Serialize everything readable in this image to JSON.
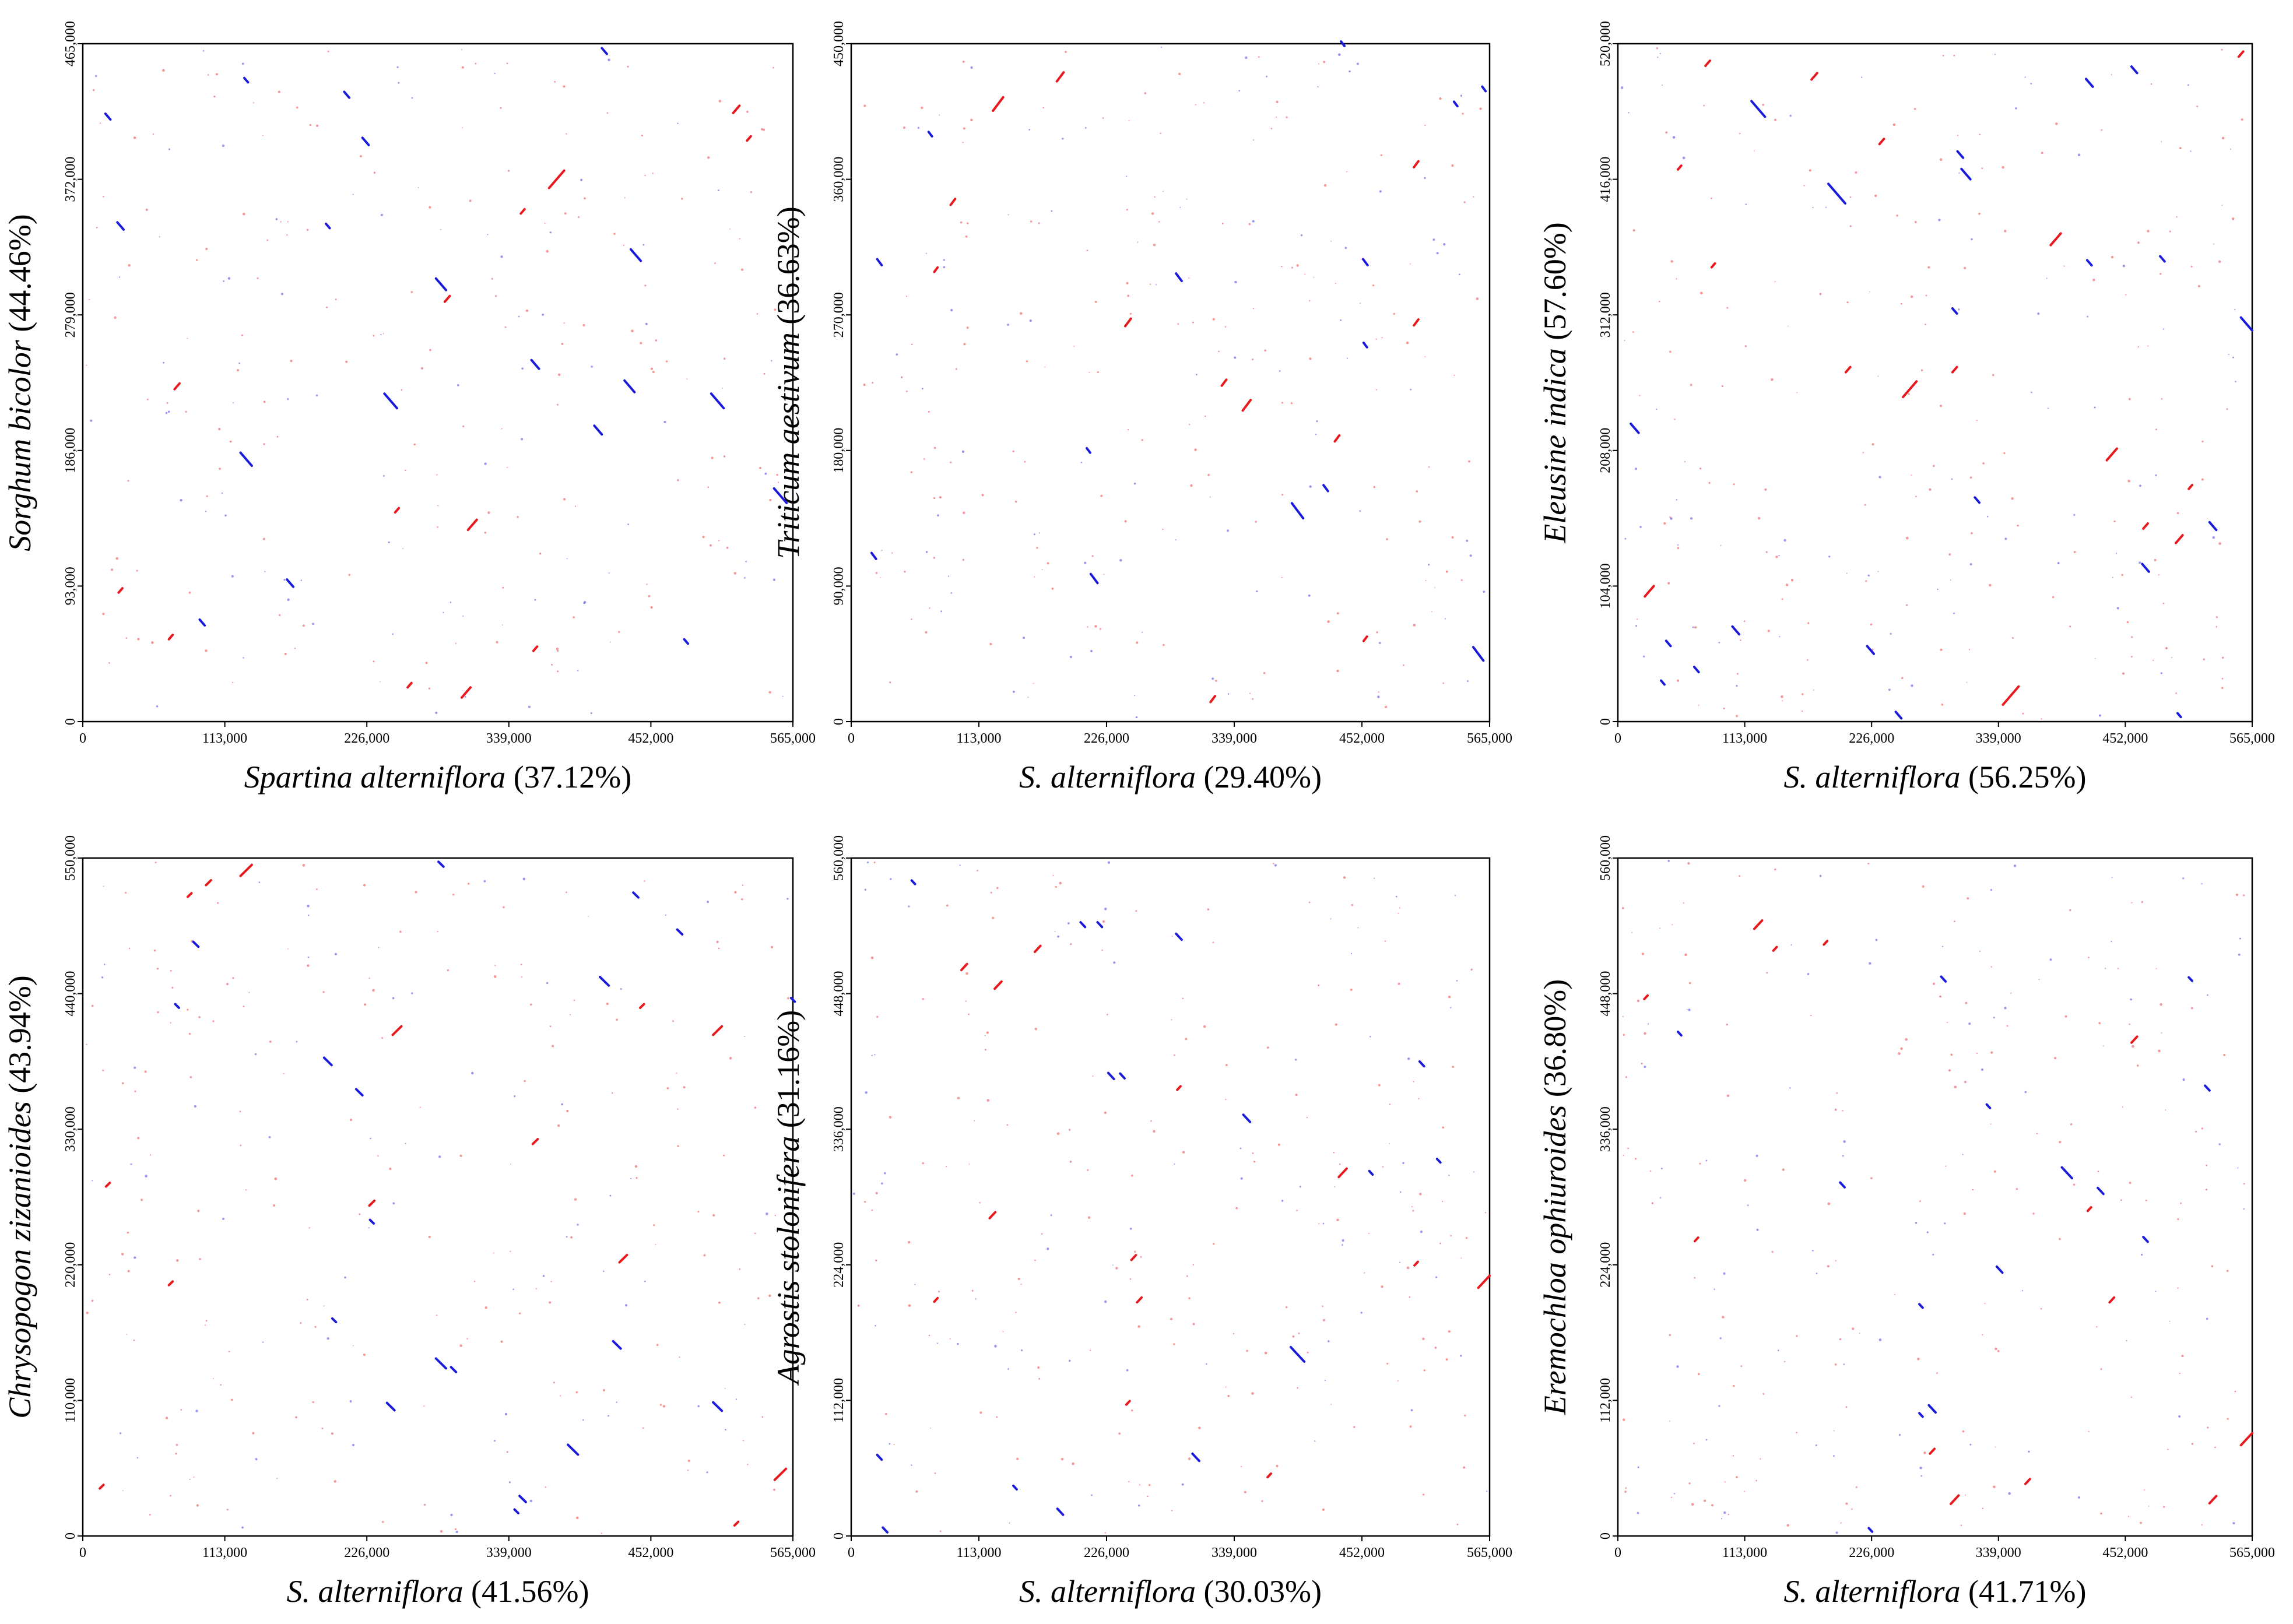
{
  "colors": {
    "forward": "#e8181c",
    "reverse": "#1a1adc",
    "frame": "#000000"
  },
  "chart_data": [
    {
      "type": "scatter",
      "panel": "top-left",
      "xlabel": {
        "species": "Spartina alterniflora",
        "pct": " (37.12%)"
      },
      "ylabel": {
        "species": "Sorghum bicolor",
        "pct": "  (44.46%)"
      },
      "xlim": [
        0,
        565000
      ],
      "ylim": [
        0,
        465000
      ],
      "xticks": [
        "0",
        "113,000",
        "226,000",
        "339,000",
        "452,000",
        "565,000"
      ],
      "yticks": [
        "0",
        "93,000",
        "186,000",
        "279,000",
        "372,000",
        "465,000"
      ],
      "forward_segments": [
        [
          377000,
          372000,
          12000
        ],
        [
          310000,
          135000,
          7000
        ],
        [
          305000,
          20000,
          7000
        ],
        [
          520000,
          420000,
          5000
        ],
        [
          75000,
          230000,
          4000
        ],
        [
          250000,
          145000,
          3000
        ],
        [
          290000,
          290000,
          4000
        ],
        [
          70000,
          58000,
          3000
        ],
        [
          350000,
          350000,
          3000
        ],
        [
          360000,
          50000,
          3000
        ],
        [
          530000,
          400000,
          3000
        ],
        [
          30000,
          90000,
          3000
        ],
        [
          260000,
          25000,
          3000
        ]
      ],
      "reverse_segments": [
        [
          245000,
          220000,
          10000
        ],
        [
          505000,
          220000,
          10000
        ],
        [
          555000,
          155000,
          10000
        ],
        [
          130000,
          180000,
          9000
        ],
        [
          435000,
          230000,
          8000
        ],
        [
          285000,
          300000,
          8000
        ],
        [
          440000,
          320000,
          8000
        ],
        [
          410000,
          200000,
          6000
        ],
        [
          360000,
          245000,
          6000
        ],
        [
          30000,
          340000,
          5000
        ],
        [
          225000,
          398000,
          5000
        ],
        [
          210000,
          430000,
          4000
        ],
        [
          130000,
          440000,
          3000
        ],
        [
          165000,
          95000,
          5000
        ],
        [
          95000,
          68000,
          4000
        ],
        [
          415000,
          460000,
          4000
        ],
        [
          20000,
          415000,
          4000
        ],
        [
          195000,
          340000,
          3000
        ],
        [
          480000,
          55000,
          3000
        ]
      ]
    },
    {
      "type": "scatter",
      "panel": "top-middle",
      "xlabel": {
        "species": "S. alterniflora",
        "pct": " (29.40%)"
      },
      "ylabel": {
        "species": "Triticum aestivum",
        "pct": "  (36.63%)"
      },
      "xlim": [
        0,
        565000
      ],
      "ylim": [
        0,
        450000
      ],
      "xticks": [
        "0",
        "113,000",
        "226,000",
        "339,000",
        "452,000",
        "565,000"
      ],
      "yticks": [
        "0",
        "90,000",
        "180,000",
        "270,000",
        "360,000",
        "450,000"
      ],
      "forward_segments": [
        [
          130000,
          410000,
          9000
        ],
        [
          350000,
          210000,
          7000
        ],
        [
          185000,
          428000,
          6000
        ],
        [
          245000,
          265000,
          5000
        ],
        [
          90000,
          345000,
          4000
        ],
        [
          330000,
          225000,
          4000
        ],
        [
          430000,
          188000,
          4000
        ],
        [
          500000,
          370000,
          4000
        ],
        [
          500000,
          265000,
          4000
        ],
        [
          320000,
          15000,
          4000
        ],
        [
          75000,
          300000,
          3000
        ],
        [
          455000,
          55000,
          3000
        ]
      ],
      "reverse_segments": [
        [
          395000,
          140000,
          10000
        ],
        [
          555000,
          45000,
          9000
        ],
        [
          215000,
          95000,
          6000
        ],
        [
          290000,
          295000,
          5000
        ],
        [
          25000,
          305000,
          4000
        ],
        [
          20000,
          110000,
          4000
        ],
        [
          420000,
          155000,
          4000
        ],
        [
          455000,
          305000,
          4000
        ],
        [
          435000,
          450000,
          3000
        ],
        [
          70000,
          390000,
          3000
        ],
        [
          210000,
          180000,
          3000
        ],
        [
          560000,
          420000,
          3000
        ],
        [
          535000,
          410000,
          3000
        ],
        [
          455000,
          250000,
          3000
        ]
      ]
    },
    {
      "type": "scatter",
      "panel": "top-right",
      "xlabel": {
        "species": "S. alterniflora",
        "pct": " (56.25%)"
      },
      "ylabel": {
        "species": "Eleusine indica",
        "pct": " (57.60%)"
      },
      "xlim": [
        0,
        565000
      ],
      "ylim": [
        0,
        520000
      ],
      "xticks": [
        "0",
        "113,000",
        "226,000",
        "339,000",
        "452,000",
        "565,000"
      ],
      "yticks": [
        "0",
        "104,000",
        "208,000",
        "312,000",
        "416,000",
        "520,000"
      ],
      "forward_segments": [
        [
          350000,
          20000,
          14000
        ],
        [
          260000,
          255000,
          12000
        ],
        [
          390000,
          370000,
          9000
        ],
        [
          440000,
          205000,
          9000
        ],
        [
          28000,
          100000,
          8000
        ],
        [
          500000,
          140000,
          6000
        ],
        [
          175000,
          495000,
          5000
        ],
        [
          80000,
          505000,
          4000
        ],
        [
          555000,
          512000,
          4000
        ],
        [
          470000,
          150000,
          4000
        ],
        [
          235000,
          445000,
          4000
        ],
        [
          300000,
          270000,
          4000
        ],
        [
          205000,
          270000,
          4000
        ],
        [
          55000,
          425000,
          3000
        ],
        [
          85000,
          350000,
          3000
        ],
        [
          510000,
          180000,
          3000
        ]
      ],
      "reverse_segments": [
        [
          195000,
          405000,
          15000
        ],
        [
          125000,
          470000,
          12000
        ],
        [
          560000,
          305000,
          10000
        ],
        [
          310000,
          420000,
          8000
        ],
        [
          15000,
          225000,
          7000
        ],
        [
          105000,
          70000,
          6000
        ],
        [
          225000,
          55000,
          6000
        ],
        [
          420000,
          490000,
          6000
        ],
        [
          470000,
          118000,
          6000
        ],
        [
          530000,
          150000,
          6000
        ],
        [
          250000,
          5000,
          5000
        ],
        [
          460000,
          500000,
          5000
        ],
        [
          305000,
          435000,
          5000
        ],
        [
          45000,
          60000,
          4000
        ],
        [
          70000,
          40000,
          4000
        ],
        [
          40000,
          30000,
          3000
        ],
        [
          300000,
          315000,
          4000
        ],
        [
          420000,
          352000,
          4000
        ],
        [
          485000,
          355000,
          4000
        ],
        [
          320000,
          170000,
          4000
        ],
        [
          500000,
          5000,
          3000
        ]
      ]
    },
    {
      "type": "scatter",
      "panel": "bottom-left",
      "xlabel": {
        "species": "S. alterniflora",
        "pct": " (41.56%)"
      },
      "ylabel": {
        "species": "Chrysopogon zizanioides",
        "pct": "  (43.94%)"
      },
      "xlim": [
        0,
        565000
      ],
      "ylim": [
        0,
        550000
      ],
      "xticks": [
        "0",
        "113,000",
        "226,000",
        "339,000",
        "452,000",
        "565,000"
      ],
      "yticks": [
        "0",
        "110,000",
        "220,000",
        "330,000",
        "440,000",
        "550,000"
      ],
      "forward_segments": [
        [
          130000,
          540000,
          9000
        ],
        [
          555000,
          50000,
          9000
        ],
        [
          250000,
          410000,
          7000
        ],
        [
          505000,
          410000,
          7000
        ],
        [
          430000,
          225000,
          6000
        ],
        [
          230000,
          270000,
          4000
        ],
        [
          360000,
          320000,
          4000
        ],
        [
          100000,
          530000,
          4000
        ],
        [
          85000,
          520000,
          3000
        ],
        [
          20000,
          285000,
          3000
        ],
        [
          520000,
          10000,
          3000
        ],
        [
          15000,
          40000,
          3000
        ],
        [
          445000,
          430000,
          3000
        ],
        [
          70000,
          205000,
          3000
        ]
      ],
      "reverse_segments": [
        [
          390000,
          70000,
          8000
        ],
        [
          285000,
          140000,
          8000
        ],
        [
          505000,
          105000,
          7000
        ],
        [
          245000,
          105000,
          6000
        ],
        [
          415000,
          450000,
          7000
        ],
        [
          195000,
          385000,
          6000
        ],
        [
          220000,
          360000,
          5000
        ],
        [
          425000,
          155000,
          6000
        ],
        [
          350000,
          30000,
          5000
        ],
        [
          295000,
          135000,
          4000
        ],
        [
          90000,
          480000,
          4000
        ],
        [
          440000,
          520000,
          4000
        ],
        [
          475000,
          490000,
          4000
        ],
        [
          285000,
          545000,
          4000
        ],
        [
          200000,
          175000,
          3000
        ],
        [
          75000,
          430000,
          3000
        ],
        [
          565000,
          435000,
          3000
        ],
        [
          230000,
          255000,
          3000
        ],
        [
          345000,
          20000,
          3000
        ]
      ]
    },
    {
      "type": "scatter",
      "panel": "bottom-middle",
      "xlabel": {
        "species": "S. alterniflora",
        "pct": " (30.03%)"
      },
      "ylabel": {
        "species": "Agrostis stolonifera",
        "pct": " (31.16%)"
      },
      "xlim": [
        0,
        565000
      ],
      "ylim": [
        0,
        560000
      ],
      "xticks": [
        "0",
        "113,000",
        "226,000",
        "339,000",
        "452,000",
        "565,000"
      ],
      "yticks": [
        "0",
        "112,000",
        "224,000",
        "336,000",
        "448,000",
        "560,000"
      ],
      "forward_segments": [
        [
          560000,
          210000,
          10000
        ],
        [
          130000,
          455000,
          6000
        ],
        [
          435000,
          300000,
          7000
        ],
        [
          165000,
          485000,
          5000
        ],
        [
          100000,
          470000,
          5000
        ],
        [
          125000,
          265000,
          5000
        ],
        [
          255000,
          195000,
          4000
        ],
        [
          250000,
          230000,
          4000
        ],
        [
          500000,
          225000,
          3000
        ],
        [
          75000,
          195000,
          3000
        ],
        [
          245000,
          110000,
          3000
        ],
        [
          290000,
          370000,
          3000
        ],
        [
          370000,
          50000,
          3000
        ]
      ],
      "reverse_segments": [
        [
          395000,
          150000,
          12000
        ],
        [
          305000,
          65000,
          6000
        ],
        [
          350000,
          345000,
          6000
        ],
        [
          290000,
          495000,
          5000
        ],
        [
          230000,
          380000,
          5000
        ],
        [
          185000,
          20000,
          5000
        ],
        [
          25000,
          65000,
          4000
        ],
        [
          30000,
          5000,
          4000
        ],
        [
          240000,
          380000,
          4000
        ],
        [
          205000,
          505000,
          4000
        ],
        [
          220000,
          505000,
          4000
        ],
        [
          55000,
          540000,
          3000
        ],
        [
          460000,
          300000,
          3000
        ],
        [
          505000,
          390000,
          4000
        ],
        [
          520000,
          310000,
          3000
        ],
        [
          145000,
          40000,
          3000
        ]
      ]
    },
    {
      "type": "scatter",
      "panel": "bottom-right",
      "xlabel": {
        "species": "S. alterniflora",
        "pct": " (41.71%)"
      },
      "ylabel": {
        "species": "Eremochloa ophiuroides",
        "pct": "  (36.80%)"
      },
      "xlim": [
        0,
        565000
      ],
      "ylim": [
        0,
        560000
      ],
      "xticks": [
        "0",
        "113,000",
        "226,000",
        "339,000",
        "452,000",
        "565,000"
      ],
      "yticks": [
        "0",
        "112,000",
        "224,000",
        "336,000",
        "448,000",
        "560,000"
      ],
      "forward_segments": [
        [
          560000,
          80000,
          10000
        ],
        [
          125000,
          505000,
          7000
        ],
        [
          300000,
          30000,
          7000
        ],
        [
          530000,
          30000,
          6000
        ],
        [
          460000,
          410000,
          5000
        ],
        [
          365000,
          45000,
          4000
        ],
        [
          280000,
          70000,
          4000
        ],
        [
          440000,
          195000,
          4000
        ],
        [
          140000,
          485000,
          3000
        ],
        [
          25000,
          445000,
          3000
        ],
        [
          70000,
          245000,
          3000
        ],
        [
          420000,
          270000,
          3000
        ],
        [
          185000,
          490000,
          3000
        ]
      ],
      "reverse_segments": [
        [
          400000,
          300000,
          9000
        ],
        [
          280000,
          105000,
          6000
        ],
        [
          340000,
          220000,
          5000
        ],
        [
          430000,
          285000,
          5000
        ],
        [
          470000,
          245000,
          4000
        ],
        [
          525000,
          370000,
          4000
        ],
        [
          290000,
          460000,
          4000
        ],
        [
          200000,
          290000,
          4000
        ],
        [
          225000,
          5000,
          3000
        ],
        [
          55000,
          415000,
          3000
        ],
        [
          330000,
          355000,
          3000
        ],
        [
          270000,
          100000,
          3000
        ],
        [
          510000,
          460000,
          3000
        ],
        [
          270000,
          190000,
          3000
        ]
      ]
    }
  ]
}
